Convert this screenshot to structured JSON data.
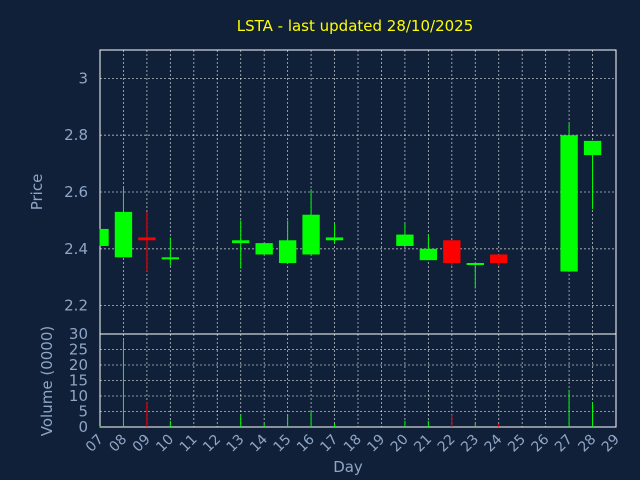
{
  "chart_data": {
    "type": "candlestick",
    "title": "LSTA - last updated 28/10/2025",
    "xlabel": "Day",
    "price_panel": {
      "ylabel": "Price",
      "ylim": [
        2.1,
        3.1
      ],
      "yticks": [
        "2.2",
        "2.4",
        "2.6",
        "2.8",
        "3"
      ],
      "grid": true
    },
    "volume_panel": {
      "ylabel": "Volume (0000)",
      "ylim": [
        0,
        30
      ],
      "yticks": [
        "0",
        "5",
        "10",
        "15",
        "20",
        "25",
        "30"
      ],
      "grid": true
    },
    "x_ticks": [
      "07",
      "08",
      "09",
      "10",
      "11",
      "12",
      "13",
      "14",
      "15",
      "16",
      "17",
      "18",
      "19",
      "20",
      "21",
      "22",
      "23",
      "24",
      "25",
      "26",
      "27",
      "28",
      "29"
    ],
    "candles": [
      {
        "day": 7,
        "open": 2.41,
        "high": 2.47,
        "low": 2.41,
        "close": 2.47,
        "volume": 0.3
      },
      {
        "day": 8,
        "open": 2.37,
        "high": 2.62,
        "low": 2.37,
        "close": 2.53,
        "volume": 28
      },
      {
        "day": 9,
        "open": 2.44,
        "high": 2.53,
        "low": 2.32,
        "close": 2.43,
        "volume": 8
      },
      {
        "day": 10,
        "open": 2.37,
        "high": 2.44,
        "low": 2.34,
        "close": 2.37,
        "volume": 2
      },
      {
        "day": 13,
        "open": 2.42,
        "high": 2.5,
        "low": 2.33,
        "close": 2.43,
        "volume": 4
      },
      {
        "day": 14,
        "open": 2.38,
        "high": 2.42,
        "low": 2.38,
        "close": 2.42,
        "volume": 1
      },
      {
        "day": 15,
        "open": 2.35,
        "high": 2.5,
        "low": 2.35,
        "close": 2.43,
        "volume": 4
      },
      {
        "day": 16,
        "open": 2.38,
        "high": 2.61,
        "low": 2.38,
        "close": 2.52,
        "volume": 5
      },
      {
        "day": 17,
        "open": 2.43,
        "high": 2.49,
        "low": 2.42,
        "close": 2.44,
        "volume": 1
      },
      {
        "day": 20,
        "open": 2.41,
        "high": 2.49,
        "low": 2.41,
        "close": 2.45,
        "volume": 2
      },
      {
        "day": 21,
        "open": 2.36,
        "high": 2.45,
        "low": 2.36,
        "close": 2.4,
        "volume": 2
      },
      {
        "day": 22,
        "open": 2.43,
        "high": 2.43,
        "low": 2.34,
        "close": 2.35,
        "volume": 4
      },
      {
        "day": 23,
        "open": 2.35,
        "high": 2.35,
        "low": 2.26,
        "close": 2.35,
        "volume": 1
      },
      {
        "day": 24,
        "open": 2.38,
        "high": 2.38,
        "low": 2.34,
        "close": 2.35,
        "volume": 1
      },
      {
        "day": 27,
        "open": 2.32,
        "high": 2.84,
        "low": 2.32,
        "close": 2.8,
        "volume": 12
      },
      {
        "day": 28,
        "open": 2.73,
        "high": 2.78,
        "low": 2.54,
        "close": 2.78,
        "volume": 8
      }
    ],
    "colors": {
      "background": "#0f2038",
      "plot_border": "#ffffff",
      "grid": "#ffffff",
      "title": "#ffff00",
      "axis_text": "#8fa6c6",
      "up": "#00ff00",
      "down": "#ff0000"
    }
  }
}
